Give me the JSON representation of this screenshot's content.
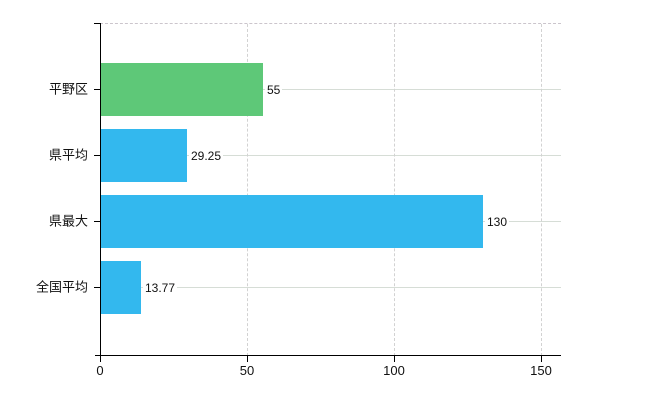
{
  "chart_data": {
    "type": "bar",
    "orientation": "horizontal",
    "title": "",
    "xlabel": "",
    "ylabel": "",
    "grid": true,
    "legend": false,
    "categories": [
      "平野区",
      "県平均",
      "県最大",
      "全国平均"
    ],
    "values": [
      55,
      29.25,
      130,
      13.77
    ],
    "value_labels": [
      "55",
      "29.25",
      "130",
      "13.77"
    ],
    "bar_colors": [
      "#5ec878",
      "#33b8ee",
      "#33b8ee",
      "#33b8ee"
    ],
    "xlim": [
      0,
      150
    ],
    "x_ticks": [
      0,
      50,
      100,
      150
    ],
    "x_tick_labels": [
      "0",
      "50",
      "100",
      "150"
    ]
  },
  "colors": {
    "green_bar": "#5ec878",
    "blue_bar": "#33b8ee",
    "h_gridline": "#d6ddd6",
    "v_gridline": "#d2d2d2",
    "top_border": "#cbc5cc",
    "axis": "#000000",
    "text": "#111111",
    "background": "#ffffff"
  }
}
